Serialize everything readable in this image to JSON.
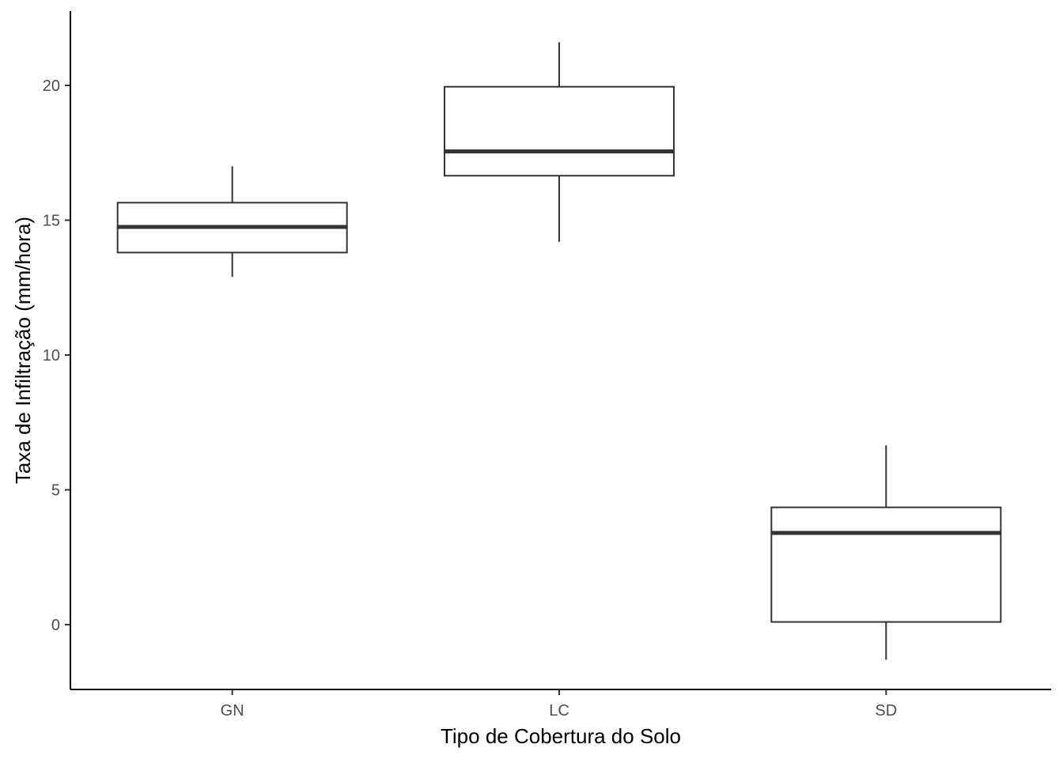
{
  "chart_data": {
    "type": "boxplot",
    "xlabel": "Tipo de Cobertura do Solo",
    "ylabel": "Taxa de Infiltração (mm/hora)",
    "ylim": [
      -2.4,
      22.7
    ],
    "yticks": [
      0,
      5,
      10,
      15,
      20
    ],
    "ytick_labels": [
      "0",
      "5",
      "10",
      "15",
      "20"
    ],
    "grid": false,
    "legend": "none",
    "categories": [
      "GN",
      "LC",
      "SD"
    ],
    "boxes": [
      {
        "category": "GN",
        "whisker_low": 12.9,
        "q1": 13.8,
        "median": 14.75,
        "q3": 15.65,
        "whisker_high": 17.0
      },
      {
        "category": "LC",
        "whisker_low": 14.2,
        "q1": 16.65,
        "median": 17.55,
        "q3": 19.95,
        "whisker_high": 21.6
      },
      {
        "category": "SD",
        "whisker_low": -1.3,
        "q1": 0.1,
        "median": 3.4,
        "q3": 4.35,
        "whisker_high": 6.65
      }
    ],
    "colors": {
      "box_stroke": "#333333",
      "box_fill": "#ffffff",
      "axis": "#000000",
      "tick_text": "#4d4d4d"
    }
  }
}
